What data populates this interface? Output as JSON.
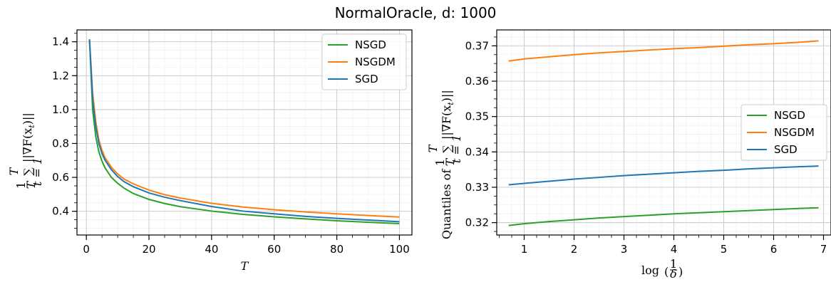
{
  "title": "NormalOracle, d: 1000",
  "colors": {
    "NSGD": "#2ca02c",
    "NSGDM": "#ff7f0e",
    "SGD": "#1f77b4"
  },
  "chart_data": [
    {
      "type": "line",
      "xlabel": "T",
      "ylabel": "1/T Σ_{t=1}^{T} ||∇F(x_t)||",
      "xlim": [
        -3,
        104
      ],
      "ylim": [
        0.26,
        1.47
      ],
      "xticks": [
        0,
        20,
        40,
        60,
        80,
        100
      ],
      "xtick_labels": [
        "0",
        "20",
        "40",
        "60",
        "80",
        "100"
      ],
      "yticks": [
        0.4,
        0.6,
        0.8,
        1.0,
        1.2,
        1.4
      ],
      "ytick_labels": [
        "0.4",
        "0.6",
        "0.8",
        "1.0",
        "1.2",
        "1.4"
      ],
      "grid": true,
      "legend": "top-right",
      "x": [
        1,
        2,
        3,
        4,
        5,
        6,
        8,
        10,
        12,
        15,
        20,
        25,
        30,
        40,
        50,
        60,
        70,
        80,
        90,
        100
      ],
      "series": [
        {
          "name": "NSGD",
          "values": [
            1.414,
            1.0,
            0.84,
            0.75,
            0.695,
            0.655,
            0.6,
            0.565,
            0.537,
            0.505,
            0.47,
            0.446,
            0.427,
            0.401,
            0.382,
            0.367,
            0.355,
            0.344,
            0.335,
            0.327
          ]
        },
        {
          "name": "NSGDM",
          "values": [
            1.414,
            1.1,
            0.93,
            0.82,
            0.76,
            0.715,
            0.66,
            0.62,
            0.59,
            0.562,
            0.525,
            0.498,
            0.478,
            0.447,
            0.425,
            0.409,
            0.396,
            0.385,
            0.375,
            0.366
          ]
        },
        {
          "name": "SGD",
          "values": [
            1.414,
            1.06,
            0.9,
            0.8,
            0.74,
            0.7,
            0.645,
            0.605,
            0.575,
            0.545,
            0.508,
            0.483,
            0.463,
            0.428,
            0.401,
            0.385,
            0.37,
            0.358,
            0.348,
            0.338
          ]
        }
      ]
    },
    {
      "type": "line",
      "xlabel": "log (1/δ)",
      "ylabel": "Quantiles of 1/T Σ_{t=1}^{T} ||∇F(x_t)||",
      "xlim": [
        0.45,
        7.15
      ],
      "ylim": [
        0.3165,
        0.3745
      ],
      "xticks": [
        1,
        2,
        3,
        4,
        5,
        6,
        7
      ],
      "xtick_labels": [
        "1",
        "2",
        "3",
        "4",
        "5",
        "6",
        "7"
      ],
      "yticks": [
        0.32,
        0.33,
        0.34,
        0.35,
        0.36,
        0.37
      ],
      "ytick_labels": [
        "0.32",
        "0.33",
        "0.34",
        "0.35",
        "0.36",
        "0.37"
      ],
      "grid": true,
      "legend": "center-right",
      "x": [
        0.69,
        1.0,
        1.5,
        2.0,
        2.5,
        3.0,
        3.5,
        4.0,
        4.5,
        5.0,
        5.5,
        6.0,
        6.5,
        6.9
      ],
      "series": [
        {
          "name": "NSGD",
          "values": [
            0.3192,
            0.3197,
            0.3203,
            0.3208,
            0.3213,
            0.3217,
            0.3221,
            0.3225,
            0.3228,
            0.3231,
            0.3234,
            0.3237,
            0.324,
            0.3242
          ]
        },
        {
          "name": "NSGDM",
          "values": [
            0.3657,
            0.3663,
            0.3669,
            0.3675,
            0.368,
            0.3684,
            0.3688,
            0.3692,
            0.3695,
            0.3699,
            0.3703,
            0.3706,
            0.371,
            0.3714
          ]
        },
        {
          "name": "SGD",
          "values": [
            0.3307,
            0.3311,
            0.3317,
            0.3323,
            0.3328,
            0.3333,
            0.3337,
            0.3341,
            0.3345,
            0.3348,
            0.3352,
            0.3355,
            0.3358,
            0.336
          ]
        }
      ]
    }
  ]
}
